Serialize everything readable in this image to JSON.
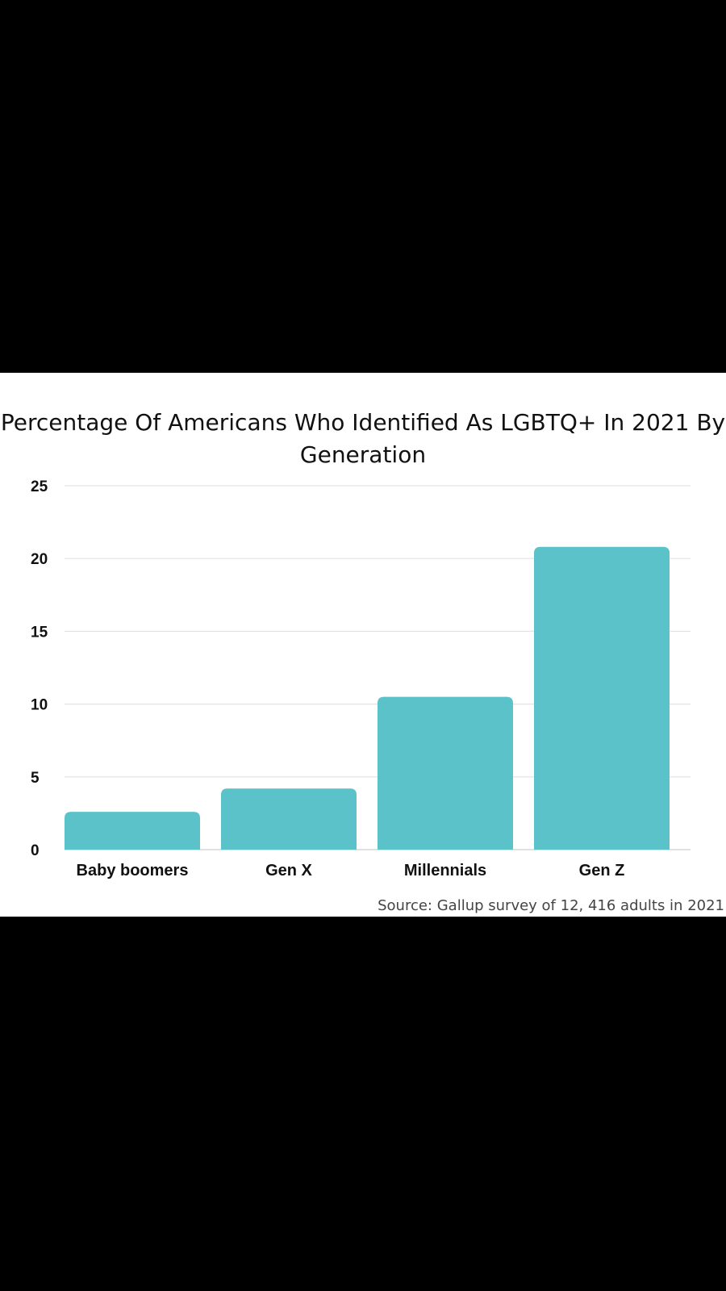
{
  "chart_data": {
    "type": "bar",
    "title": "Percentage Of Americans Who Identified As LGBTQ+ In 2021 By Generation",
    "categories": [
      "Baby boomers",
      "Gen X",
      "Millennials",
      "Gen Z"
    ],
    "values": [
      2.6,
      4.2,
      10.5,
      20.8
    ],
    "ylim": [
      0,
      25
    ],
    "yticks": [
      0,
      5,
      10,
      15,
      20,
      25
    ],
    "grid": true,
    "bar_color": "#5bc2ca",
    "source": "Source: Gallup survey of 12, 416 adults in 2021"
  }
}
